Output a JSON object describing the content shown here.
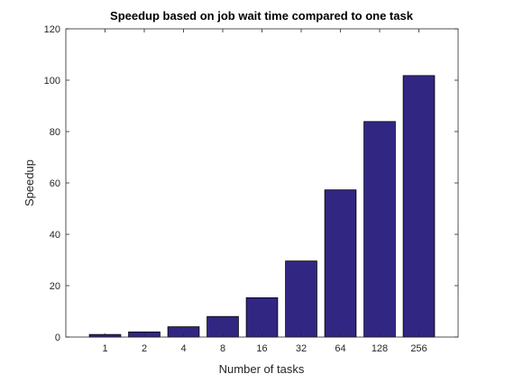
{
  "chart_data": {
    "type": "bar",
    "title": "Speedup based on job wait time compared to one task",
    "xlabel": "Number of tasks",
    "ylabel": "Speedup",
    "categories": [
      "1",
      "2",
      "4",
      "8",
      "16",
      "32",
      "64",
      "128",
      "256"
    ],
    "values": [
      1,
      2,
      4,
      8,
      15.3,
      29.6,
      57.3,
      83.9,
      101.8
    ],
    "ylim": [
      0,
      120
    ],
    "yticks": [
      "0",
      "20",
      "40",
      "60",
      "80",
      "100",
      "120"
    ],
    "grid": false,
    "bar_color": "#312783",
    "bar_edge_color": "#000000",
    "axis_color": "#262626"
  }
}
